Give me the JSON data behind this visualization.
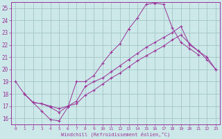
{
  "xlabel": "Windchill (Refroidissement éolien,°C)",
  "xlim": [
    -0.5,
    23.5
  ],
  "ylim": [
    15.5,
    25.5
  ],
  "xticks": [
    0,
    1,
    2,
    3,
    4,
    5,
    6,
    7,
    8,
    9,
    10,
    11,
    12,
    13,
    14,
    15,
    16,
    17,
    18,
    19,
    20,
    21,
    22,
    23
  ],
  "yticks": [
    16,
    17,
    18,
    19,
    20,
    21,
    22,
    23,
    24,
    25
  ],
  "bg_color": "#cce8e8",
  "line_color": "#993399",
  "grid_color": "#9bbfbf",
  "line1_x": [
    0,
    1,
    2,
    3,
    4,
    5,
    6,
    7,
    8,
    9,
    10,
    11,
    12,
    13,
    14,
    15,
    16,
    17,
    18,
    19,
    20,
    21
  ],
  "line1_y": [
    19.0,
    18.0,
    17.3,
    16.6,
    15.9,
    15.8,
    16.9,
    19.0,
    19.0,
    19.5,
    20.5,
    21.4,
    22.1,
    23.3,
    24.2,
    25.3,
    25.4,
    25.3,
    23.4,
    22.2,
    21.7,
    21.2
  ],
  "line2_x": [
    1,
    2,
    3,
    4,
    5,
    6,
    7,
    8,
    9,
    10,
    11,
    12,
    13,
    14,
    15,
    16,
    17,
    18,
    19,
    20,
    21,
    22,
    23
  ],
  "line2_y": [
    18.0,
    17.3,
    17.2,
    17.0,
    16.8,
    17.0,
    17.2,
    17.9,
    18.3,
    18.8,
    19.3,
    19.7,
    20.2,
    20.7,
    21.1,
    21.5,
    21.9,
    22.4,
    22.8,
    22.1,
    21.5,
    20.8,
    20.0
  ],
  "line3_x": [
    1,
    2,
    3,
    4,
    5,
    6,
    7,
    8,
    9,
    10,
    11,
    12,
    13,
    14,
    15,
    16,
    17,
    18,
    19,
    20,
    21,
    22,
    23
  ],
  "line3_y": [
    18.0,
    17.3,
    17.2,
    16.9,
    16.5,
    17.0,
    17.4,
    18.6,
    19.0,
    19.3,
    19.8,
    20.3,
    20.8,
    21.3,
    21.8,
    22.2,
    22.6,
    23.0,
    23.5,
    22.0,
    21.5,
    21.0,
    20.0
  ]
}
